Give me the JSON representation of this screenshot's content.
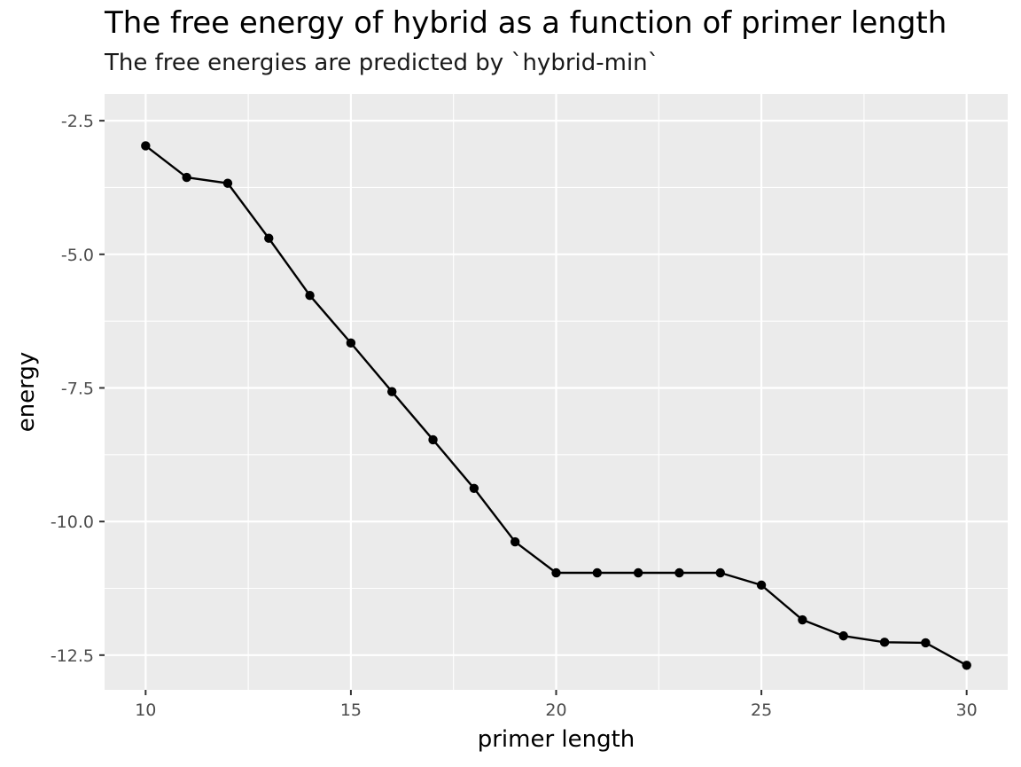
{
  "chart_data": {
    "type": "line",
    "title": "The free energy of hybrid as a function of primer length",
    "subtitle": "The free energies are predicted by `hybrid-min`",
    "xlabel": "primer length",
    "ylabel": "energy",
    "xlim": [
      9,
      31
    ],
    "ylim": [
      -13.15,
      -2.0
    ],
    "xticks": [
      10,
      15,
      20,
      25,
      30
    ],
    "xtick_labels": [
      "10",
      "15",
      "20",
      "25",
      "30"
    ],
    "yticks": [
      -2.5,
      -5.0,
      -7.5,
      -10.0,
      -12.5
    ],
    "ytick_labels": [
      "-2.5",
      "-5.0",
      "-7.5",
      "-10.0",
      "-12.5"
    ],
    "grid": true,
    "markers": "point",
    "line_color": "#000000",
    "panel_color": "#ebebeb",
    "x": [
      10,
      11,
      12,
      13,
      14,
      15,
      16,
      17,
      18,
      19,
      20,
      21,
      22,
      23,
      24,
      25,
      26,
      27,
      28,
      29,
      30
    ],
    "y": [
      -2.97,
      -3.56,
      -3.67,
      -4.7,
      -5.77,
      -6.66,
      -7.57,
      -8.47,
      -9.38,
      -10.38,
      -10.96,
      -10.96,
      -10.96,
      -10.96,
      -10.96,
      -11.19,
      -11.84,
      -12.14,
      -12.26,
      -12.27,
      -12.69
    ]
  }
}
